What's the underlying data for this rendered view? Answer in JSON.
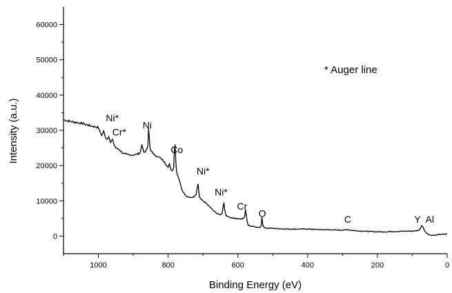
{
  "chart_data": {
    "type": "line",
    "title": "",
    "xlabel": "Binding Energy (eV)",
    "ylabel": "Intensity (a.u.)",
    "xlim": [
      1100,
      0
    ],
    "ylim": [
      -5000,
      65000
    ],
    "x_reversed": true,
    "grid": false,
    "x_ticks": [
      1000,
      800,
      600,
      400,
      200,
      0
    ],
    "y_ticks": [
      0,
      10000,
      20000,
      30000,
      40000,
      50000,
      60000
    ],
    "x_tick_labels": [
      "1000",
      "800",
      "600",
      "400",
      "200",
      "0"
    ],
    "y_tick_labels": [
      "0",
      "10000",
      "20000",
      "30000",
      "40000",
      "50000",
      "60000"
    ],
    "annotation": "* Auger line",
    "series": [
      {
        "x": [
          1100,
          1080,
          1060,
          1040,
          1020,
          1010,
          1000,
          995,
          990,
          985,
          980,
          975,
          970,
          965,
          960,
          955,
          950,
          940,
          930,
          920,
          910,
          900,
          890,
          880,
          875,
          870,
          866,
          862,
          858,
          856,
          854,
          852,
          850,
          846,
          840,
          830,
          820,
          810,
          805,
          800,
          796,
          792,
          788,
          784,
          782,
          780,
          778,
          776,
          774,
          772,
          770,
          765,
          760,
          750,
          740,
          730,
          725,
          720,
          716,
          714,
          712,
          710,
          706,
          700,
          690,
          680,
          670,
          660,
          650,
          645,
          642,
          640,
          638,
          634,
          630,
          620,
          610,
          600,
          590,
          584,
          580,
          578,
          576,
          574,
          572,
          570,
          560,
          550,
          540,
          535,
          533,
          531,
          529,
          527,
          524,
          520,
          500,
          480,
          460,
          440,
          420,
          400,
          380,
          360,
          340,
          320,
          300,
          290,
          285,
          280,
          260,
          240,
          220,
          200,
          180,
          160,
          140,
          120,
          100,
          90,
          80,
          75,
          73,
          70,
          66,
          60,
          50,
          40,
          30,
          20,
          10,
          0
        ],
        "y": [
          33000,
          32500,
          32200,
          31800,
          31200,
          31000,
          30800,
          29500,
          28500,
          29800,
          28000,
          27500,
          28200,
          26500,
          27500,
          26000,
          25000,
          24500,
          23500,
          23200,
          23000,
          23000,
          23200,
          23600,
          26000,
          23800,
          23800,
          24500,
          25500,
          30500,
          28000,
          25000,
          24200,
          24000,
          23000,
          22500,
          22000,
          21000,
          20000,
          19500,
          20500,
          18800,
          18500,
          19500,
          24500,
          26000,
          21000,
          18500,
          17500,
          17000,
          16500,
          15000,
          13000,
          11500,
          11000,
          11000,
          11200,
          11800,
          14000,
          14800,
          12500,
          11000,
          10500,
          10000,
          9300,
          8300,
          7200,
          6400,
          6000,
          6500,
          8500,
          9500,
          7500,
          5800,
          5600,
          5100,
          5000,
          4900,
          4800,
          5000,
          5800,
          7500,
          6000,
          4500,
          3500,
          3000,
          2800,
          2600,
          2500,
          2600,
          3000,
          5500,
          3500,
          2700,
          2400,
          2300,
          2200,
          2100,
          2000,
          2000,
          2000,
          2000,
          1900,
          1800,
          1800,
          1700,
          1700,
          1700,
          1900,
          1700,
          1500,
          1400,
          1300,
          1200,
          1200,
          1300,
          1300,
          1400,
          1400,
          1500,
          1700,
          2500,
          3000,
          2700,
          1800,
          900,
          300,
          200,
          300,
          500,
          500,
          600
        ]
      }
    ],
    "peak_labels": [
      {
        "text": "Ni*",
        "x": 960,
        "y": 32500
      },
      {
        "text": "Cr*",
        "x": 940,
        "y": 28500
      },
      {
        "text": "Ni",
        "x": 860,
        "y": 30500
      },
      {
        "text": "Co",
        "x": 775,
        "y": 23500
      },
      {
        "text": "Ni*",
        "x": 700,
        "y": 17500
      },
      {
        "text": "Ni*",
        "x": 648,
        "y": 11500
      },
      {
        "text": "Cr",
        "x": 588,
        "y": 7500
      },
      {
        "text": "O",
        "x": 530,
        "y": 5500
      },
      {
        "text": "C",
        "x": 285,
        "y": 3800
      },
      {
        "text": "Y",
        "x": 85,
        "y": 3800
      },
      {
        "text": "Al",
        "x": 50,
        "y": 3800
      }
    ]
  }
}
